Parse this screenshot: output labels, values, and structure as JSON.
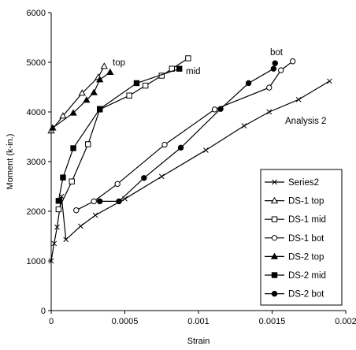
{
  "chart_data": {
    "type": "line",
    "xlabel": "Strain",
    "ylabel": "Moment (k-in.)",
    "xlim": [
      0,
      0.002
    ],
    "ylim": [
      0,
      6000
    ],
    "x_ticks": [
      "0",
      "0.0005",
      "0.001",
      "0.0015",
      "0.002"
    ],
    "y_ticks": [
      "0",
      "1000",
      "2000",
      "3000",
      "4000",
      "5000",
      "6000"
    ],
    "grid": false,
    "legend_position": "bottom-right",
    "annotations": [
      "top",
      "mid",
      "bot",
      "Analysis 2"
    ],
    "series": [
      {
        "name": "Series2",
        "marker": "x",
        "points": [
          [
            0.0,
            1000
          ],
          [
            2e-05,
            1350
          ],
          [
            4e-05,
            1680
          ],
          [
            7e-05,
            2300
          ],
          [
            0.0001,
            1430
          ],
          [
            0.0002,
            1700
          ],
          [
            0.0003,
            1920
          ],
          [
            0.0005,
            2250
          ],
          [
            0.00075,
            2700
          ],
          [
            0.00105,
            3230
          ],
          [
            0.00131,
            3720
          ],
          [
            0.00148,
            4000
          ],
          [
            0.00168,
            4250
          ],
          [
            0.00189,
            4620
          ]
        ]
      },
      {
        "name": "DS-1 top",
        "marker": "open-triangle",
        "points": [
          [
            0.0,
            3620
          ],
          [
            8e-05,
            3920
          ],
          [
            0.00021,
            4380
          ],
          [
            0.00032,
            4700
          ],
          [
            0.00036,
            4920
          ]
        ]
      },
      {
        "name": "DS-1 mid",
        "marker": "open-square",
        "points": [
          [
            5e-05,
            2040
          ],
          [
            0.00014,
            2600
          ],
          [
            0.00025,
            3350
          ],
          [
            0.00033,
            4050
          ],
          [
            0.00053,
            4330
          ],
          [
            0.00064,
            4530
          ],
          [
            0.00075,
            4730
          ],
          [
            0.00082,
            4870
          ],
          [
            0.00093,
            5080
          ]
        ]
      },
      {
        "name": "DS-1 bot",
        "marker": "open-circle",
        "points": [
          [
            0.00017,
            2020
          ],
          [
            0.00029,
            2200
          ],
          [
            0.00045,
            2550
          ],
          [
            0.00077,
            3340
          ],
          [
            0.00111,
            4050
          ],
          [
            0.00148,
            4490
          ],
          [
            0.00156,
            4840
          ],
          [
            0.00164,
            5020
          ]
        ]
      },
      {
        "name": "DS-2 top",
        "marker": "filled-triangle",
        "points": [
          [
            1e-05,
            3680
          ],
          [
            0.00015,
            3980
          ],
          [
            0.00024,
            4240
          ],
          [
            0.00029,
            4390
          ],
          [
            0.00033,
            4650
          ],
          [
            0.0004,
            4800
          ]
        ]
      },
      {
        "name": "DS-2 mid",
        "marker": "filled-square",
        "points": [
          [
            5e-05,
            2210
          ],
          [
            8e-05,
            2680
          ],
          [
            0.00015,
            3270
          ],
          [
            0.00033,
            4060
          ],
          [
            0.00058,
            4580
          ],
          [
            0.00087,
            4870
          ]
        ]
      },
      {
        "name": "DS-2 bot",
        "marker": "filled-circle",
        "points": [
          [
            0.00033,
            2200
          ],
          [
            0.00046,
            2200
          ],
          [
            0.00063,
            2670
          ],
          [
            0.00088,
            3280
          ],
          [
            0.00115,
            4060
          ],
          [
            0.00134,
            4580
          ],
          [
            0.00151,
            4870
          ],
          [
            0.00152,
            4980
          ]
        ]
      }
    ]
  }
}
